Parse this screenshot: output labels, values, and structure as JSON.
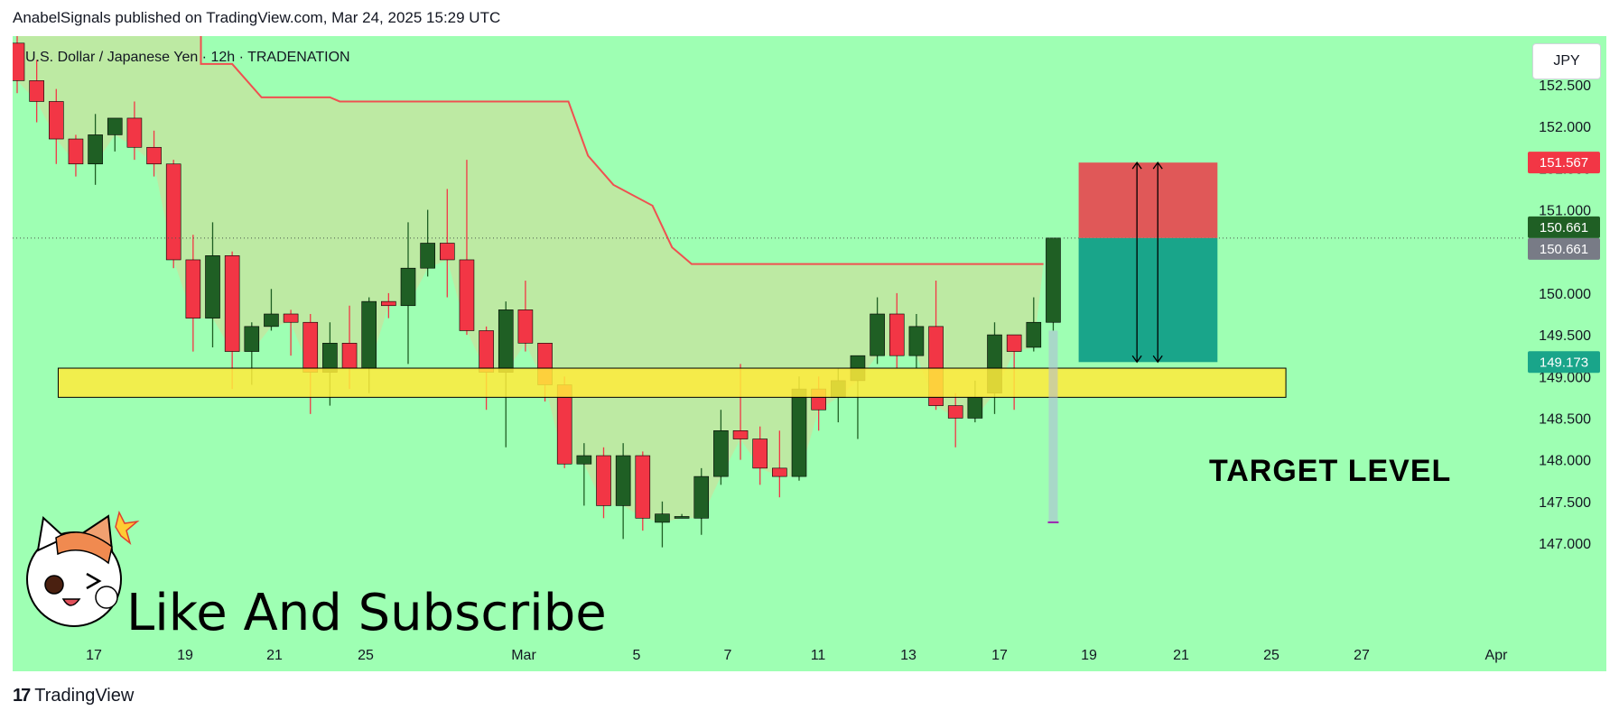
{
  "header": {
    "publisher_line": "AnabelSignals published on TradingView.com, Mar 24, 2025 15:29 UTC"
  },
  "symbol": {
    "label": "U.S. Dollar / Japanese Yen · 12h · TRADENATION",
    "currency_button": "JPY"
  },
  "footer": {
    "logo_mark": "17",
    "brand": "TradingView"
  },
  "annotations": {
    "target_level": "TARGET LEVEL",
    "subscribe": "Like And Subscribe"
  },
  "colors": {
    "background": "#9effb3",
    "bull": "#1f5f24",
    "bear": "#f23645",
    "stop_zone": "#e05858",
    "target_zone": "#19a58a",
    "support_zone": "#ffeb3b",
    "trail_line": "#f05050",
    "cloud": "#f5c487"
  },
  "chart_data": {
    "type": "candlestick",
    "ylim": [
      146.85,
      153.15
    ],
    "y_ticks": [
      "147.000",
      "147.500",
      "148.000",
      "148.500",
      "149.000",
      "149.500",
      "150.000",
      "150.500",
      "151.000",
      "151.500",
      "152.000",
      "152.500"
    ],
    "x_ticks": [
      "17",
      "19",
      "21",
      "25",
      "Mar",
      "5",
      "7",
      "11",
      "13",
      "17",
      "19",
      "21",
      "25",
      "27",
      "Apr"
    ],
    "price_tags": [
      {
        "label": "151.567",
        "value": 151.567,
        "color": "#f23645"
      },
      {
        "label": "150.661",
        "value": 150.661,
        "color": "#1f5f24"
      },
      {
        "label": "150.661",
        "value": 150.661,
        "color": "#787b86"
      },
      {
        "label": "149.173",
        "value": 149.173,
        "color": "#19a58a"
      }
    ],
    "candles": [
      {
        "o": 153.0,
        "h": 153.4,
        "c": 152.55,
        "l": 152.4
      },
      {
        "o": 152.55,
        "h": 152.8,
        "c": 152.3,
        "l": 152.05
      },
      {
        "o": 152.3,
        "h": 152.45,
        "c": 151.85,
        "l": 151.55
      },
      {
        "o": 151.85,
        "h": 151.9,
        "c": 151.55,
        "l": 151.4
      },
      {
        "o": 151.55,
        "h": 152.15,
        "c": 151.9,
        "l": 151.3
      },
      {
        "o": 151.9,
        "h": 152.1,
        "c": 152.1,
        "l": 151.7
      },
      {
        "o": 152.1,
        "h": 152.3,
        "c": 151.75,
        "l": 151.6
      },
      {
        "o": 151.75,
        "h": 151.95,
        "c": 151.55,
        "l": 151.4
      },
      {
        "o": 151.55,
        "h": 151.6,
        "c": 150.4,
        "l": 150.3
      },
      {
        "o": 150.4,
        "h": 150.7,
        "c": 149.7,
        "l": 149.3
      },
      {
        "o": 149.7,
        "h": 150.85,
        "c": 150.45,
        "l": 149.35
      },
      {
        "o": 150.45,
        "h": 150.5,
        "c": 149.3,
        "l": 148.85
      },
      {
        "o": 149.3,
        "h": 149.65,
        "c": 149.6,
        "l": 148.9
      },
      {
        "o": 149.6,
        "h": 150.05,
        "c": 149.75,
        "l": 149.55
      },
      {
        "o": 149.75,
        "h": 149.8,
        "c": 149.65,
        "l": 149.25
      },
      {
        "o": 149.65,
        "h": 149.75,
        "c": 149.05,
        "l": 148.55
      },
      {
        "o": 149.05,
        "h": 149.65,
        "c": 149.4,
        "l": 148.65
      },
      {
        "o": 149.4,
        "h": 149.85,
        "c": 149.1,
        "l": 148.85
      },
      {
        "o": 149.1,
        "h": 149.95,
        "c": 149.9,
        "l": 148.8
      },
      {
        "o": 149.9,
        "h": 150.0,
        "c": 149.85,
        "l": 149.7
      },
      {
        "o": 149.85,
        "h": 150.85,
        "c": 150.3,
        "l": 149.15
      },
      {
        "o": 150.3,
        "h": 151.0,
        "c": 150.6,
        "l": 150.2
      },
      {
        "o": 150.6,
        "h": 151.25,
        "c": 150.4,
        "l": 149.95
      },
      {
        "o": 150.4,
        "h": 151.6,
        "c": 149.55,
        "l": 149.5
      },
      {
        "o": 149.55,
        "h": 149.6,
        "c": 149.05,
        "l": 148.6
      },
      {
        "o": 149.05,
        "h": 149.9,
        "c": 149.8,
        "l": 148.15
      },
      {
        "o": 149.8,
        "h": 150.15,
        "c": 149.4,
        "l": 149.3
      },
      {
        "o": 149.4,
        "h": 149.4,
        "c": 148.9,
        "l": 148.7
      },
      {
        "o": 148.9,
        "h": 149.0,
        "c": 147.95,
        "l": 147.9
      },
      {
        "o": 147.95,
        "h": 148.2,
        "c": 148.05,
        "l": 147.45
      },
      {
        "o": 148.05,
        "h": 148.15,
        "c": 147.45,
        "l": 147.3
      },
      {
        "o": 147.45,
        "h": 148.2,
        "c": 148.05,
        "l": 147.05
      },
      {
        "o": 148.05,
        "h": 148.1,
        "c": 147.3,
        "l": 147.15
      },
      {
        "o": 147.25,
        "h": 147.5,
        "c": 147.35,
        "l": 146.95
      },
      {
        "o": 147.3,
        "h": 147.35,
        "c": 147.32,
        "l": 147.3
      },
      {
        "o": 147.3,
        "h": 147.9,
        "c": 147.8,
        "l": 147.1
      },
      {
        "o": 147.8,
        "h": 148.6,
        "c": 148.35,
        "l": 147.7
      },
      {
        "o": 148.35,
        "h": 149.15,
        "c": 148.25,
        "l": 148.0
      },
      {
        "o": 148.25,
        "h": 148.4,
        "c": 147.9,
        "l": 147.7
      },
      {
        "o": 147.9,
        "h": 148.35,
        "c": 147.8,
        "l": 147.55
      },
      {
        "o": 147.8,
        "h": 149.0,
        "c": 148.85,
        "l": 147.75
      },
      {
        "o": 148.85,
        "h": 149.0,
        "c": 148.6,
        "l": 148.35
      },
      {
        "o": 148.75,
        "h": 149.1,
        "c": 148.95,
        "l": 148.45
      },
      {
        "o": 148.95,
        "h": 149.25,
        "c": 149.25,
        "l": 148.25
      },
      {
        "o": 149.25,
        "h": 149.95,
        "c": 149.75,
        "l": 149.15
      },
      {
        "o": 149.75,
        "h": 150.0,
        "c": 149.25,
        "l": 149.1
      },
      {
        "o": 149.25,
        "h": 149.75,
        "c": 149.6,
        "l": 149.1
      },
      {
        "o": 149.6,
        "h": 150.15,
        "c": 148.65,
        "l": 148.6
      },
      {
        "o": 148.65,
        "h": 148.8,
        "c": 148.5,
        "l": 148.15
      },
      {
        "o": 148.5,
        "h": 148.95,
        "c": 148.75,
        "l": 148.45
      },
      {
        "o": 148.8,
        "h": 149.65,
        "c": 149.5,
        "l": 148.55
      },
      {
        "o": 149.5,
        "h": 149.5,
        "c": 149.3,
        "l": 148.6
      },
      {
        "o": 149.35,
        "h": 149.95,
        "c": 149.65,
        "l": 149.3
      },
      {
        "o": 149.65,
        "h": 150.661,
        "c": 150.661,
        "l": 149.55
      }
    ],
    "trail_line": [
      [
        0,
        153.2
      ],
      [
        9.4,
        153.2
      ],
      [
        9.4,
        152.75
      ],
      [
        11.0,
        152.75
      ],
      [
        12.5,
        152.35
      ],
      [
        16.0,
        152.35
      ],
      [
        16.5,
        152.3
      ],
      [
        28.2,
        152.3
      ],
      [
        29.2,
        151.65
      ],
      [
        30.5,
        151.3
      ],
      [
        32.5,
        151.05
      ],
      [
        33.5,
        150.55
      ],
      [
        34.5,
        150.35
      ],
      [
        52.5,
        150.35
      ]
    ],
    "support_zone": {
      "x0": 2.1,
      "x1": 64.9,
      "y0": 148.75,
      "y1": 149.1
    },
    "position": {
      "x0": 54.3,
      "x1": 61.4,
      "stop": 151.567,
      "entry": 150.661,
      "target": 149.173
    },
    "projection_bar": {
      "x": 53.0,
      "from": 149.55,
      "to": 147.25
    }
  }
}
